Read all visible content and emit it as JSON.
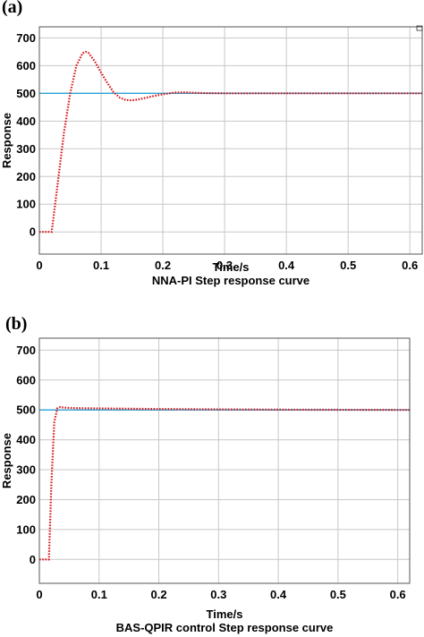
{
  "chart_data": [
    {
      "panel_label": "(a)",
      "type": "line",
      "xlabel": "Time/s",
      "ylabel": "Response",
      "caption": "NNA-PI Step response curve",
      "xlim": [
        0,
        0.62
      ],
      "ylim": [
        -80,
        740
      ],
      "x_ticks": [
        0,
        0.1,
        0.2,
        0.3,
        0.4,
        0.5,
        0.6
      ],
      "x_tick_labels": [
        "0",
        "0.1",
        "0.2",
        "0.3",
        "0.4",
        "0.5",
        "0.6"
      ],
      "y_ticks": [
        0,
        100,
        200,
        300,
        400,
        500,
        600,
        700
      ],
      "y_tick_labels": [
        "0",
        "100",
        "200",
        "300",
        "400",
        "500",
        "600",
        "700"
      ],
      "grid": true,
      "series": [
        {
          "style": "solid",
          "color": "#29a3d6",
          "x": [
            0,
            0.62
          ],
          "y": [
            500,
            500
          ]
        },
        {
          "style": "dotted",
          "color": "#d9181c",
          "x": [
            0,
            0.02,
            0.03,
            0.04,
            0.05,
            0.06,
            0.07,
            0.075,
            0.08,
            0.09,
            0.1,
            0.11,
            0.12,
            0.13,
            0.14,
            0.15,
            0.16,
            0.18,
            0.2,
            0.22,
            0.24,
            0.26,
            0.3,
            0.4,
            0.5,
            0.62
          ],
          "y": [
            0,
            0,
            180,
            360,
            500,
            600,
            645,
            650,
            645,
            615,
            575,
            538,
            505,
            485,
            476,
            475,
            478,
            488,
            497,
            503,
            503,
            501,
            500,
            500,
            500,
            500
          ]
        }
      ]
    },
    {
      "panel_label": "(b)",
      "type": "line",
      "xlabel": "Time/s",
      "ylabel": "Response",
      "caption": "BAS-QPIR control Step response curve",
      "xlim": [
        0,
        0.62
      ],
      "ylim": [
        -80,
        740
      ],
      "x_ticks": [
        0,
        0.1,
        0.2,
        0.3,
        0.4,
        0.5,
        0.6
      ],
      "x_tick_labels": [
        "0",
        "0.1",
        "0.2",
        "0.3",
        "0.4",
        "0.5",
        "0.6"
      ],
      "y_ticks": [
        0,
        100,
        200,
        300,
        400,
        500,
        600,
        700
      ],
      "y_tick_labels": [
        "0",
        "100",
        "200",
        "300",
        "400",
        "500",
        "600",
        "700"
      ],
      "grid": true,
      "series": [
        {
          "style": "solid",
          "color": "#29a3d6",
          "x": [
            0,
            0.62
          ],
          "y": [
            500,
            500
          ]
        },
        {
          "style": "dotted",
          "color": "#d9181c",
          "x": [
            0,
            0.016,
            0.02,
            0.025,
            0.03,
            0.035,
            0.04,
            0.06,
            0.1,
            0.2,
            0.4,
            0.62
          ],
          "y": [
            0,
            0,
            250,
            460,
            505,
            510,
            508,
            506,
            505,
            503,
            501,
            500
          ]
        }
      ]
    }
  ]
}
